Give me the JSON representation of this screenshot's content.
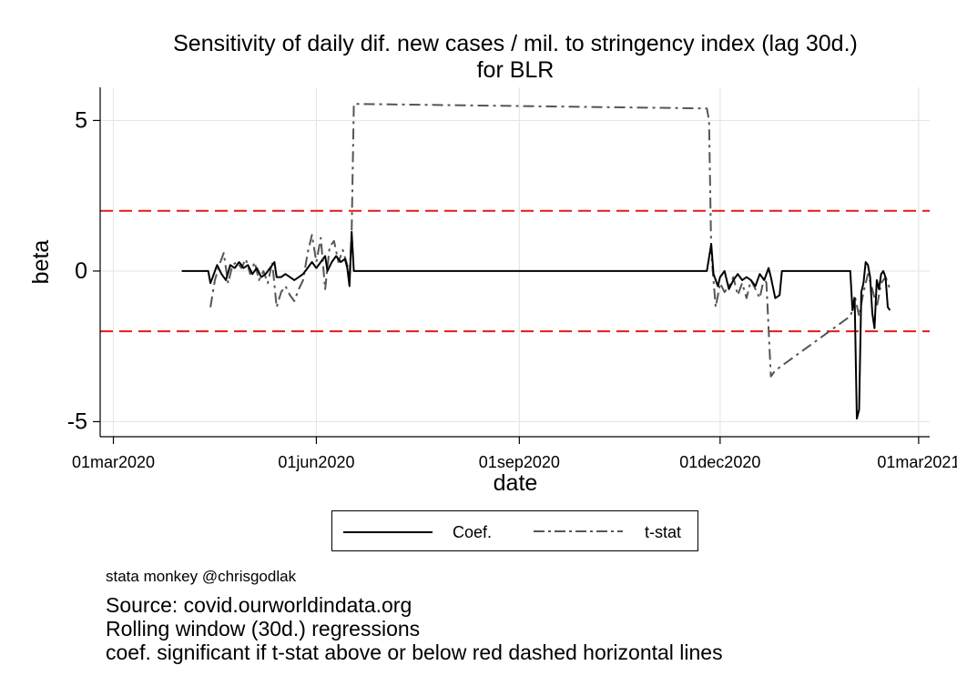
{
  "chart_data": {
    "type": "line",
    "title": "Sensitivity of daily dif. new cases / mil. to stringency index (lag 30d.)",
    "subtitle": "for BLR",
    "xlabel": "date",
    "ylabel": "beta",
    "x_ticks": [
      "01mar2020",
      "01jun2020",
      "01sep2020",
      "01dec2020",
      "01mar2021"
    ],
    "y_ticks": [
      5,
      0,
      -5
    ],
    "xlim": [
      "2020-02-24",
      "2021-03-06"
    ],
    "ylim": [
      -5.5,
      6.1
    ],
    "grid": true,
    "reference_lines": [
      {
        "y": 2,
        "color": "#e41a1c",
        "style": "dashed"
      },
      {
        "y": -2,
        "color": "#e41a1c",
        "style": "dashed"
      }
    ],
    "legend_position": "bottom",
    "series": [
      {
        "name": "Coef.",
        "color": "#000000",
        "style": "solid",
        "points": [
          [
            "2020-04-01",
            0
          ],
          [
            "2020-04-13",
            0
          ],
          [
            "2020-04-14",
            -0.4
          ],
          [
            "2020-04-15",
            -0.2
          ],
          [
            "2020-04-17",
            0.2
          ],
          [
            "2020-04-19",
            -0.1
          ],
          [
            "2020-04-21",
            -0.3
          ],
          [
            "2020-04-23",
            0.2
          ],
          [
            "2020-04-25",
            0.1
          ],
          [
            "2020-04-27",
            0.3
          ],
          [
            "2020-04-29",
            0.1
          ],
          [
            "2020-05-01",
            0.2
          ],
          [
            "2020-05-03",
            -0.1
          ],
          [
            "2020-05-05",
            0.1
          ],
          [
            "2020-05-07",
            -0.2
          ],
          [
            "2020-05-09",
            -0.1
          ],
          [
            "2020-05-11",
            0.1
          ],
          [
            "2020-05-13",
            0.3
          ],
          [
            "2020-05-14",
            -0.2
          ],
          [
            "2020-05-16",
            -0.2
          ],
          [
            "2020-05-18",
            -0.1
          ],
          [
            "2020-05-20",
            -0.2
          ],
          [
            "2020-05-22",
            -0.3
          ],
          [
            "2020-05-24",
            -0.2
          ],
          [
            "2020-05-26",
            -0.1
          ],
          [
            "2020-05-28",
            0.1
          ],
          [
            "2020-05-30",
            0.3
          ],
          [
            "2020-06-01",
            0.1
          ],
          [
            "2020-06-03",
            0.3
          ],
          [
            "2020-06-05",
            0.5
          ],
          [
            "2020-06-06",
            0.0
          ],
          [
            "2020-06-08",
            0.3
          ],
          [
            "2020-06-10",
            0.5
          ],
          [
            "2020-06-12",
            0.3
          ],
          [
            "2020-06-14",
            0.4
          ],
          [
            "2020-06-15",
            0.1
          ],
          [
            "2020-06-16",
            -0.5
          ],
          [
            "2020-06-17",
            1.3
          ],
          [
            "2020-06-18",
            0
          ],
          [
            "2020-11-25",
            0
          ],
          [
            "2020-11-27",
            0.9
          ],
          [
            "2020-11-28",
            -0.1
          ],
          [
            "2020-11-30",
            -0.5
          ],
          [
            "2020-12-01",
            -0.2
          ],
          [
            "2020-12-03",
            0.0
          ],
          [
            "2020-12-05",
            -0.6
          ],
          [
            "2020-12-07",
            -0.3
          ],
          [
            "2020-12-09",
            -0.1
          ],
          [
            "2020-12-11",
            -0.3
          ],
          [
            "2020-12-13",
            -0.2
          ],
          [
            "2020-12-15",
            -0.3
          ],
          [
            "2020-12-17",
            -0.5
          ],
          [
            "2020-12-19",
            -0.1
          ],
          [
            "2020-12-21",
            -0.3
          ],
          [
            "2020-12-23",
            0.1
          ],
          [
            "2020-12-24",
            -0.2
          ],
          [
            "2020-12-26",
            -0.9
          ],
          [
            "2020-12-28",
            -0.8
          ],
          [
            "2020-12-29",
            0
          ],
          [
            "2021-01-29",
            0
          ],
          [
            "2021-01-30",
            -1.3
          ],
          [
            "2021-01-31",
            -0.9
          ],
          [
            "2021-02-01",
            -4.9
          ],
          [
            "2021-02-02",
            -4.6
          ],
          [
            "2021-02-03",
            -0.7
          ],
          [
            "2021-02-04",
            -0.4
          ],
          [
            "2021-02-05",
            0.3
          ],
          [
            "2021-02-06",
            0.2
          ],
          [
            "2021-02-07",
            -0.2
          ],
          [
            "2021-02-08",
            -1.4
          ],
          [
            "2021-02-09",
            -1.9
          ],
          [
            "2021-02-10",
            -0.3
          ],
          [
            "2021-02-11",
            -0.6
          ],
          [
            "2021-02-12",
            -0.1
          ],
          [
            "2021-02-13",
            0.0
          ],
          [
            "2021-02-14",
            -0.2
          ],
          [
            "2021-02-15",
            -1.2
          ],
          [
            "2021-02-16",
            -1.3
          ]
        ]
      },
      {
        "name": "t-stat",
        "color": "#555555",
        "style": "dash-dot",
        "points": [
          [
            "2020-04-14",
            -1.2
          ],
          [
            "2020-04-16",
            -0.3
          ],
          [
            "2020-04-18",
            0.2
          ],
          [
            "2020-04-20",
            0.6
          ],
          [
            "2020-04-22",
            -0.4
          ],
          [
            "2020-04-24",
            0.2
          ],
          [
            "2020-04-26",
            0.3
          ],
          [
            "2020-04-28",
            0.1
          ],
          [
            "2020-04-30",
            0.4
          ],
          [
            "2020-05-02",
            -0.1
          ],
          [
            "2020-05-04",
            0.3
          ],
          [
            "2020-05-06",
            -0.3
          ],
          [
            "2020-05-08",
            0.0
          ],
          [
            "2020-05-10",
            -0.4
          ],
          [
            "2020-05-12",
            0.3
          ],
          [
            "2020-05-14",
            -1.2
          ],
          [
            "2020-05-16",
            -0.7
          ],
          [
            "2020-05-18",
            -0.5
          ],
          [
            "2020-05-20",
            -0.8
          ],
          [
            "2020-05-22",
            -1.0
          ],
          [
            "2020-05-24",
            -0.6
          ],
          [
            "2020-05-26",
            -0.3
          ],
          [
            "2020-05-28",
            0.6
          ],
          [
            "2020-05-30",
            1.2
          ],
          [
            "2020-06-01",
            0.3
          ],
          [
            "2020-06-03",
            1.1
          ],
          [
            "2020-06-05",
            -0.6
          ],
          [
            "2020-06-07",
            0.8
          ],
          [
            "2020-06-09",
            1.0
          ],
          [
            "2020-06-11",
            0.3
          ],
          [
            "2020-06-13",
            0.7
          ],
          [
            "2020-06-15",
            0.2
          ],
          [
            "2020-06-16",
            -0.2
          ],
          [
            "2020-06-17",
            1.3
          ],
          [
            "2020-06-18",
            5.55
          ],
          [
            "2020-11-25",
            5.4
          ],
          [
            "2020-11-26",
            5.0
          ],
          [
            "2020-11-27",
            0.6
          ],
          [
            "2020-11-28",
            -0.3
          ],
          [
            "2020-11-29",
            -1.2
          ],
          [
            "2020-12-01",
            -0.4
          ],
          [
            "2020-12-03",
            -0.7
          ],
          [
            "2020-12-05",
            -0.5
          ],
          [
            "2020-12-07",
            -0.2
          ],
          [
            "2020-12-09",
            -0.8
          ],
          [
            "2020-12-11",
            -0.4
          ],
          [
            "2020-12-13",
            -0.9
          ],
          [
            "2020-12-15",
            -0.3
          ],
          [
            "2020-12-17",
            -0.6
          ],
          [
            "2020-12-19",
            -0.9
          ],
          [
            "2020-12-21",
            -0.2
          ],
          [
            "2020-12-22",
            -0.4
          ],
          [
            "2020-12-24",
            -3.5
          ],
          [
            "2020-12-26",
            -3.3
          ],
          [
            "2021-01-29",
            -1.5
          ],
          [
            "2021-01-30",
            -1.3
          ],
          [
            "2021-01-31",
            -0.8
          ],
          [
            "2021-02-02",
            -1.5
          ],
          [
            "2021-02-04",
            -0.7
          ],
          [
            "2021-02-06",
            -0.1
          ],
          [
            "2021-02-08",
            -0.6
          ],
          [
            "2021-02-10",
            -1.2
          ],
          [
            "2021-02-12",
            -0.4
          ],
          [
            "2021-02-14",
            -0.2
          ],
          [
            "2021-02-16",
            -0.6
          ]
        ]
      }
    ]
  },
  "legend": {
    "items": [
      {
        "label": "Coef."
      },
      {
        "label": "t-stat"
      }
    ]
  },
  "notes": {
    "credit": "stata monkey @chrisgodlak",
    "source": "Source: covid.ourworldindata.org",
    "method": "Rolling window (30d.) regressions",
    "significance": "coef. significant if t-stat above or below red dashed horizontal lines"
  }
}
